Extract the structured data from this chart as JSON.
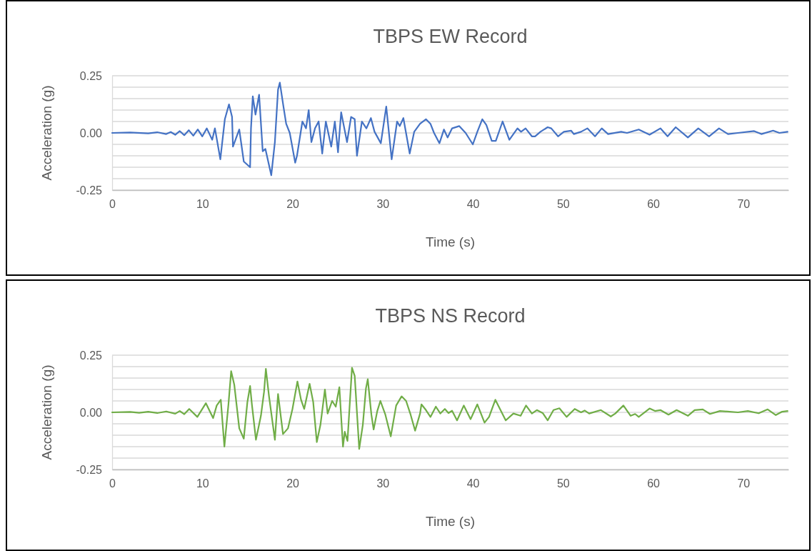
{
  "chart_data": [
    {
      "type": "line",
      "title": "TBPS EW Record",
      "xlabel": "Time (s)",
      "ylabel": "Acceleration (g)",
      "xlim": [
        0,
        75
      ],
      "xticks": [
        0,
        10,
        20,
        30,
        40,
        50,
        60,
        70
      ],
      "ylim": [
        -0.25,
        0.25
      ],
      "yticks": [
        {
          "value": -0.25,
          "label": "-0.25"
        },
        {
          "value": -0.2,
          "label": null
        },
        {
          "value": -0.15,
          "label": null
        },
        {
          "value": -0.1,
          "label": null
        },
        {
          "value": -0.05,
          "label": null
        },
        {
          "value": 0,
          "label": "0.00"
        },
        {
          "value": 0.05,
          "label": null
        },
        {
          "value": 0.1,
          "label": null
        },
        {
          "value": 0.15,
          "label": null
        },
        {
          "value": 0.2,
          "label": null
        },
        0.25
      ],
      "grid": "y",
      "marker": "none",
      "line_style": "solid",
      "series": [
        {
          "color": "#4472c4",
          "x": [
            0,
            2,
            4,
            5,
            6,
            6.5,
            7,
            7.5,
            8,
            8.5,
            9,
            9.5,
            10,
            10.5,
            11.1,
            11.4,
            12.0,
            12.5,
            12.96,
            13.3,
            13.4,
            14.1,
            14.6,
            15.3,
            15.4,
            15.6,
            15.9,
            16.3,
            16.7,
            17.0,
            17.65,
            18.05,
            18.4,
            18.6,
            19.0,
            19.3,
            19.7,
            20.3,
            20.5,
            21.1,
            21.5,
            21.8,
            22.1,
            22.5,
            22.9,
            23.3,
            23.7,
            24.3,
            24.7,
            25.05,
            25.4,
            26.05,
            26.5,
            26.9,
            27.15,
            27.7,
            28.2,
            28.7,
            29.1,
            29.8,
            30.4,
            31.0,
            31.6,
            31.9,
            32.3,
            33.0,
            33.5,
            34.15,
            34.8,
            35.3,
            35.7,
            36.3,
            36.8,
            37.2,
            37.7,
            38.5,
            39.2,
            40.0,
            40.5,
            41.05,
            41.5,
            42.1,
            42.55,
            43.3,
            44.05,
            44.95,
            45.35,
            45.85,
            46.55,
            46.9,
            47.5,
            48.3,
            48.7,
            49.45,
            50.1,
            50.9,
            51.2,
            52.0,
            52.7,
            53.55,
            54.3,
            55.0,
            56.45,
            57.1,
            58.4,
            59.6,
            60.8,
            61.6,
            62.5,
            63.85,
            65.0,
            66.2,
            67.3,
            68.3,
            69.4,
            71.2,
            72.0,
            73.3,
            74.0,
            74.9
          ],
          "values": [
            0,
            0.002,
            -0.002,
            0.003,
            -0.005,
            0.004,
            -0.008,
            0.008,
            -0.01,
            0.012,
            -0.012,
            0.015,
            -0.015,
            0.02,
            -0.03,
            0.02,
            -0.115,
            0.06,
            0.125,
            0.07,
            -0.06,
            0.015,
            -0.125,
            -0.15,
            0.02,
            0.16,
            0.08,
            0.167,
            -0.08,
            -0.07,
            -0.185,
            -0.04,
            0.19,
            0.22,
            0.115,
            0.04,
            0.0,
            -0.13,
            -0.1,
            0.05,
            0.02,
            0.1,
            -0.04,
            0.02,
            0.05,
            -0.09,
            0.05,
            -0.06,
            0.05,
            -0.085,
            0.09,
            -0.04,
            0.07,
            0.06,
            -0.1,
            0.05,
            0.02,
            0.065,
            0.005,
            -0.045,
            0.115,
            -0.115,
            0.05,
            0.03,
            0.065,
            -0.09,
            0.005,
            0.04,
            0.06,
            0.04,
            0.0,
            -0.045,
            0.015,
            -0.02,
            0.02,
            0.03,
            0.0,
            -0.05,
            0.005,
            0.06,
            0.035,
            -0.035,
            -0.035,
            0.05,
            -0.03,
            0.02,
            0.005,
            0.02,
            -0.015,
            -0.015,
            0.005,
            0.025,
            0.02,
            -0.015,
            0.005,
            0.01,
            -0.005,
            0.005,
            0.02,
            -0.015,
            0.02,
            -0.005,
            0.005,
            0.0,
            0.015,
            -0.008,
            0.02,
            -0.015,
            0.025,
            -0.02,
            0.02,
            -0.015,
            0.02,
            -0.005,
            0.0,
            0.008,
            -0.005,
            0.01,
            0.0,
            0.005
          ]
        }
      ]
    },
    {
      "type": "line",
      "title": "TBPS NS Record",
      "xlabel": "Time (s)",
      "ylabel": "Acceleration (g)",
      "xlim": [
        0,
        75
      ],
      "xticks": [
        0,
        10,
        20,
        30,
        40,
        50,
        60,
        70
      ],
      "ylim": [
        -0.25,
        0.25
      ],
      "yticks": [
        {
          "value": -0.25,
          "label": "-0.25"
        },
        {
          "value": -0.2,
          "label": null
        },
        {
          "value": -0.15,
          "label": null
        },
        {
          "value": -0.1,
          "label": null
        },
        {
          "value": -0.05,
          "label": null
        },
        {
          "value": 0,
          "label": "0.00"
        },
        {
          "value": 0.05,
          "label": null
        },
        {
          "value": 0.1,
          "label": null
        },
        {
          "value": 0.15,
          "label": null
        },
        {
          "value": 0.2,
          "label": null
        },
        0.25
      ],
      "grid": "y",
      "marker": "none",
      "line_style": "solid",
      "series": [
        {
          "color": "#70ad47",
          "x": [
            0,
            2,
            3,
            4,
            5,
            6,
            7,
            7.5,
            8,
            8.55,
            9.45,
            10.4,
            11.2,
            11.6,
            12.05,
            12.45,
            12.9,
            13.2,
            13.55,
            14.1,
            14.6,
            15.0,
            15.3,
            15.5,
            15.95,
            16.5,
            16.85,
            17.05,
            17.4,
            18.05,
            18.4,
            18.95,
            19.5,
            20.0,
            20.55,
            20.95,
            21.3,
            21.9,
            22.3,
            22.7,
            23.1,
            23.6,
            23.9,
            24.4,
            24.8,
            25.2,
            25.6,
            25.8,
            26.1,
            26.6,
            26.9,
            27.4,
            27.8,
            28.15,
            28.35,
            28.75,
            29.0,
            29.4,
            29.75,
            30.3,
            30.9,
            31.5,
            32.1,
            32.6,
            33.1,
            33.6,
            34.15,
            34.3,
            34.8,
            35.3,
            35.9,
            36.4,
            36.9,
            37.3,
            37.7,
            38.25,
            39.0,
            39.75,
            40.5,
            41.3,
            41.8,
            42.5,
            43.65,
            44.5,
            45.3,
            45.9,
            46.55,
            47.1,
            47.75,
            48.3,
            48.95,
            49.6,
            50.4,
            51.3,
            52.0,
            52.4,
            52.9,
            54.2,
            55.3,
            55.8,
            56.7,
            57.5,
            58.0,
            58.4,
            59.6,
            60.2,
            60.8,
            61.7,
            62.6,
            63.85,
            64.6,
            65.5,
            66.3,
            67.4,
            69.4,
            70.5,
            71.7,
            72.7,
            73.6,
            74.3,
            74.9
          ],
          "values": [
            0,
            0.002,
            -0.002,
            0.003,
            -0.003,
            0.004,
            -0.006,
            0.006,
            -0.008,
            0.015,
            -0.02,
            0.04,
            -0.025,
            0.03,
            0.055,
            -0.15,
            0.035,
            0.18,
            0.12,
            -0.07,
            -0.115,
            0.045,
            0.115,
            0.035,
            -0.12,
            -0.015,
            0.09,
            0.19,
            0.07,
            -0.12,
            0.08,
            -0.095,
            -0.07,
            0.015,
            0.135,
            0.055,
            0.015,
            0.125,
            0.045,
            -0.13,
            -0.055,
            0.1,
            -0.005,
            0.05,
            0.025,
            0.11,
            -0.15,
            -0.085,
            -0.125,
            0.195,
            0.16,
            -0.16,
            -0.055,
            0.105,
            0.145,
            -0.01,
            -0.075,
            0.005,
            0.05,
            -0.01,
            -0.105,
            0.03,
            0.07,
            0.05,
            -0.01,
            -0.08,
            -0.005,
            0.035,
            0.01,
            -0.02,
            0.025,
            -0.005,
            0.015,
            -0.003,
            0.007,
            -0.035,
            0.03,
            -0.03,
            0.035,
            -0.045,
            -0.02,
            0.055,
            -0.035,
            -0.005,
            -0.015,
            0.03,
            -0.005,
            0.01,
            -0.003,
            -0.035,
            0.01,
            0.018,
            -0.02,
            0.015,
            0.0,
            0.008,
            -0.005,
            0.01,
            -0.018,
            -0.005,
            0.03,
            -0.015,
            -0.007,
            -0.02,
            0.017,
            0.006,
            0.01,
            -0.01,
            0.01,
            -0.015,
            0.01,
            0.013,
            -0.007,
            0.006,
            0.0,
            0.006,
            -0.004,
            0.013,
            -0.012,
            0.003,
            0.006
          ]
        }
      ]
    }
  ]
}
